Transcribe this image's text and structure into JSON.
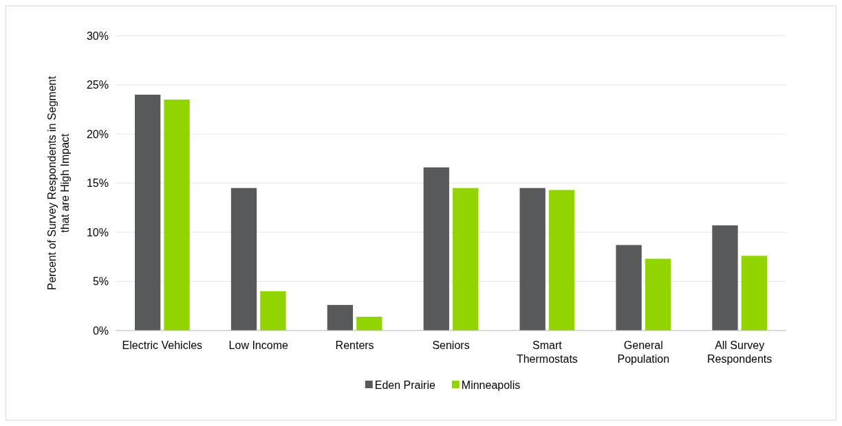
{
  "chart_data": {
    "type": "bar",
    "ylabel": "Percent of Survey Respondents in Segment that are High Impact",
    "categories": [
      "Electric Vehicles",
      "Low Income",
      "Renters",
      "Seniors",
      "Smart Thermostats",
      "General Population",
      "All Survey Respondents"
    ],
    "series": [
      {
        "name": "Eden Prairie",
        "color": "#58595b",
        "values": [
          24.0,
          14.5,
          2.6,
          16.6,
          14.5,
          8.7,
          10.7
        ]
      },
      {
        "name": "Minneapolis",
        "color": "#92d400",
        "values": [
          23.5,
          4.0,
          1.4,
          14.5,
          14.3,
          7.3,
          7.6
        ]
      }
    ],
    "ylim": [
      0,
      30
    ],
    "yticks": [
      {
        "value": 0,
        "label": "0%"
      },
      {
        "value": 5,
        "label": "5%"
      },
      {
        "value": 10,
        "label": "10%"
      },
      {
        "value": 15,
        "label": "15%"
      },
      {
        "value": 20,
        "label": "20%"
      },
      {
        "value": 25,
        "label": "25%"
      },
      {
        "value": 30,
        "label": "30%"
      }
    ],
    "grid": "y",
    "legend": "bottom"
  }
}
